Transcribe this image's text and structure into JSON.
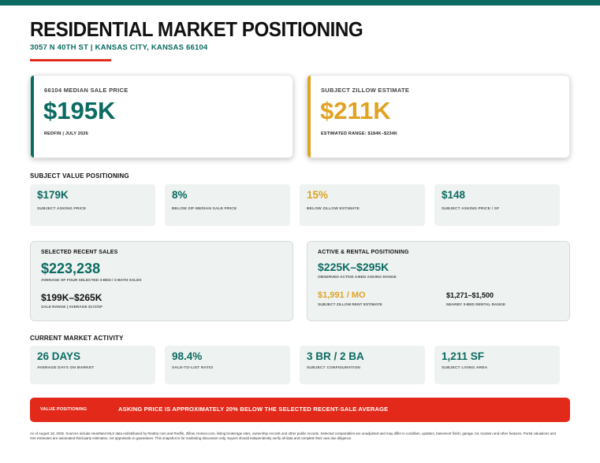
{
  "header": {
    "title": "RESIDENTIAL MARKET POSITIONING",
    "address": "3057 N 40TH ST | KANSAS CITY, KANSAS 66104"
  },
  "colors": {
    "teal": "#0b6b62",
    "gold": "#e0a324",
    "red": "#e3291a",
    "tile": "#eef2f0"
  },
  "hero": {
    "left": {
      "label": "66104 MEDIAN SALE PRICE",
      "value": "$195K",
      "source": "REDFIN | JULY 2026"
    },
    "right": {
      "label": "SUBJECT ZILLOW ESTIMATE",
      "value": "$211K",
      "source": "ESTIMATED RANGE: $184K–$234K"
    }
  },
  "value_positioning": {
    "heading": "SUBJECT VALUE POSITIONING",
    "stats": [
      {
        "value": "$179K",
        "label": "SUBJECT ASKING PRICE"
      },
      {
        "value": "8%",
        "label": "BELOW ZIP MEDIAN SALE PRICE"
      },
      {
        "value": "15%",
        "label": "BELOW ZILLOW ESTIMATE"
      },
      {
        "value": "$148",
        "label": "SUBJECT ASKING PRICE / SF"
      }
    ]
  },
  "recent_sales": {
    "heading": "SELECTED RECENT SALES",
    "average": "$223,238",
    "average_label": "AVERAGE OF FOUR SELECTED 3-BED / 2-BATH SALES",
    "range": "$199K–$265K",
    "range_label": "SALE RANGE  |  AVERAGE $172/SF"
  },
  "active_rental": {
    "heading": "ACTIVE & RENTAL POSITIONING",
    "asking_range": "$225K–$295K",
    "asking_label": "OBSERVED ACTIVE 3-BED ASKING RANGE",
    "rent": "$1,991 / MO",
    "rent_label": "SUBJECT ZILLOW RENT ESTIMATE",
    "nearby_rent": "$1,271–$1,500",
    "nearby_label": "NEARBY 3-BED RENTAL RANGE"
  },
  "market_activity": {
    "heading": "CURRENT MARKET ACTIVITY",
    "stats": [
      {
        "value": "26 DAYS",
        "label": "AVERAGE DAYS ON MARKET"
      },
      {
        "value": "98.4%",
        "label": "SALE-TO-LIST RATIO"
      },
      {
        "value": "3 BR / 2 BA",
        "label": "SUBJECT CONFIGURATION"
      },
      {
        "value": "1,211 SF",
        "label": "SUBJECT LIVING AREA"
      }
    ]
  },
  "callout": {
    "key": "VALUE POSITIONING",
    "message": "ASKING PRICE IS APPROXIMATELY 20% BELOW THE SELECTED RECENT-SALE AVERAGE"
  },
  "footer": "As of August 18, 2026. Sources include Heartland MLS data redistributed by Realtor.com and Redfin, Zillow, Homes.com, listing brokerage sites, ownership records and other public records. Selected comparables are unadjusted and may differ in condition, updates, basement finish, garage, lot, location and other features. Portal valuations and rent estimates are automated third-party estimates, not appraisals or guarantees. This snapshot is for marketing discussion only; buyers should independently verify all data and complete their own due diligence."
}
